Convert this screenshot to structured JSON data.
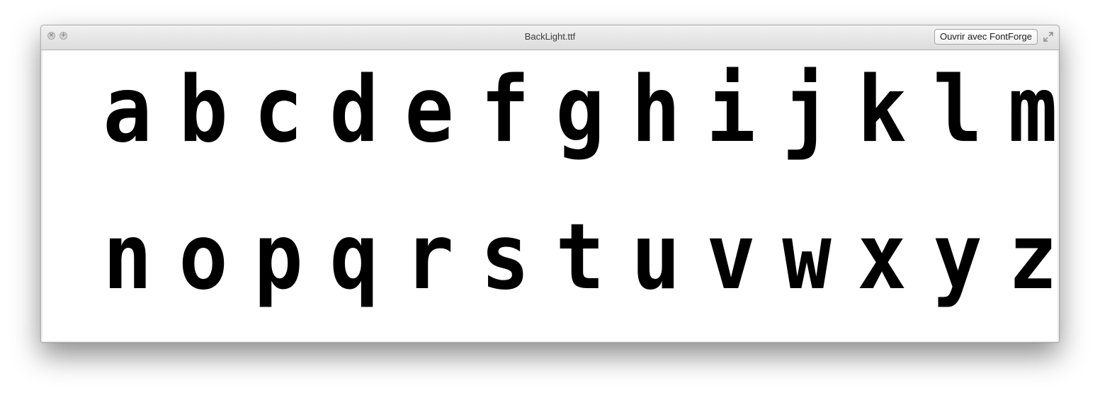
{
  "window": {
    "title": "BackLight.ttf",
    "close_icon": "close-icon",
    "zoom_icon": "plus-icon",
    "open_button_label": "Ouvrir avec FontForge",
    "fullscreen_icon": "fullscreen-icon"
  },
  "preview": {
    "row1": [
      "a",
      "b",
      "c",
      "d",
      "e",
      "f",
      "g",
      "h",
      "i",
      "j",
      "k",
      "l",
      "m"
    ],
    "row2": [
      "n",
      "o",
      "p",
      "q",
      "r",
      "s",
      "t",
      "u",
      "v",
      "w",
      "x",
      "y",
      "z"
    ]
  }
}
